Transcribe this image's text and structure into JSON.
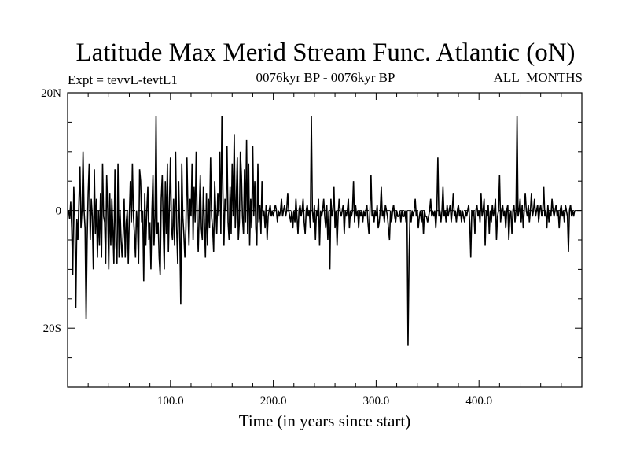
{
  "chart_data": {
    "type": "line",
    "title": "Latitude Max Merid Stream Func. Atlantic (oN)",
    "subtitle_left": "Expt = tevvL-tevtL1",
    "subtitle_center": "0076kyr BP - 0076kyr BP",
    "subtitle_right": "ALL_MONTHS",
    "xlabel": "Time (in years since start)",
    "ylabel": "",
    "xlim": [
      0,
      500
    ],
    "ylim": [
      -30,
      20
    ],
    "x_ticks": [
      100,
      200,
      300,
      400
    ],
    "x_tick_labels": [
      "100.0",
      "200.0",
      "300.0",
      "400.0"
    ],
    "y_ticks": [
      20,
      0,
      -20
    ],
    "y_tick_labels": [
      "20N",
      "0",
      "20S"
    ],
    "series": [
      {
        "name": "lat_max_stream",
        "x_start": 1,
        "x_step": 1,
        "values": [
          0,
          -1.5,
          1.5,
          -3,
          -11,
          4,
          -1,
          -16.5,
          -1.5,
          -5,
          1.5,
          7.5,
          -3,
          0,
          10,
          0,
          -3,
          -18.5,
          -5,
          3,
          8,
          -5,
          2,
          -1,
          -10,
          7,
          -4,
          2,
          -8,
          0,
          -6,
          3,
          -8,
          8,
          -1,
          -2,
          -9,
          6,
          0,
          -10,
          3,
          -6,
          2,
          -3,
          -9,
          7,
          -6,
          -9,
          8,
          -8,
          0,
          -5,
          -8,
          -4,
          2,
          -8,
          -2,
          0,
          -9,
          -1,
          5,
          -2,
          8,
          -1,
          -4,
          -8,
          0,
          -3,
          -9,
          7,
          5,
          -2,
          0,
          -12,
          3,
          -6,
          0,
          4,
          -5,
          -2,
          -10,
          0,
          6,
          -6,
          -1,
          16,
          -4,
          -2,
          -8,
          -11,
          2,
          6,
          -3,
          -10,
          5,
          -4,
          8,
          -7,
          1,
          9,
          -3,
          -5,
          2,
          -6,
          10,
          -3,
          -9,
          5,
          -3,
          -16,
          8,
          -1,
          -4,
          -8,
          -3,
          9,
          0,
          -6,
          2,
          -1,
          8,
          -5,
          4,
          -2,
          10,
          -2,
          -7,
          0,
          6,
          -3,
          -5,
          4,
          -2,
          -8,
          3,
          -6,
          2,
          -3,
          9,
          -1,
          -3,
          -7,
          5,
          0,
          -4,
          3,
          -1,
          10,
          -4,
          16,
          3,
          -6,
          2,
          0,
          11,
          -2,
          -5,
          4,
          -4,
          8,
          -1,
          13,
          -3,
          2,
          9,
          -5,
          -2,
          10,
          6,
          -1,
          -4,
          7,
          -2,
          12,
          -4,
          8,
          -6,
          2,
          -3,
          11,
          -1,
          5,
          -3,
          -6,
          8,
          -2,
          1,
          -4,
          5,
          -1,
          0,
          -3,
          1,
          -5,
          -1,
          0,
          1,
          -1,
          0,
          -1,
          0,
          1,
          0,
          -2,
          0,
          -1,
          0,
          2,
          -1,
          0,
          1,
          -1,
          0,
          3,
          0,
          -1,
          -2,
          0,
          -3,
          0,
          -2,
          2,
          -1,
          -4,
          0,
          1,
          -1,
          0,
          2,
          -2,
          -4,
          0,
          1,
          -1,
          0,
          -3,
          16,
          0,
          -2,
          1,
          -5,
          0,
          -1,
          2,
          -6,
          0,
          -1,
          0,
          2,
          -1,
          -3,
          1,
          -5,
          0,
          -10,
          2,
          -1,
          0,
          4,
          -3,
          0,
          -6,
          -1,
          2,
          0,
          -1,
          0,
          1,
          -4,
          0,
          -1,
          0,
          2,
          -3,
          0,
          -1,
          0,
          5,
          -2,
          1,
          -1,
          0,
          -3,
          0,
          -1,
          0,
          -2,
          0,
          -1,
          0,
          1,
          -2,
          -4,
          0,
          6,
          -1,
          0,
          -2,
          0,
          -1,
          1,
          -3,
          -2,
          0,
          4,
          -1,
          0,
          -2,
          1,
          0,
          -1,
          -3,
          -5,
          0,
          -2,
          0,
          1,
          -1,
          -2,
          0,
          -1,
          -1,
          0,
          -2,
          0,
          -1,
          -1,
          0,
          -2,
          0,
          -23,
          -8,
          0,
          -2,
          0,
          -1,
          0,
          2,
          -1,
          0,
          -3,
          -1,
          0,
          -2,
          0,
          -4,
          0,
          -1,
          -1,
          -2,
          -1,
          0,
          2,
          -1,
          0,
          -1,
          0,
          -3,
          0,
          9,
          -1,
          0,
          -2,
          0,
          4,
          -1,
          0,
          -2,
          1,
          -1,
          0,
          1,
          -2,
          0,
          3,
          -1,
          0,
          -2,
          0,
          1,
          -1,
          0,
          -2,
          0,
          -1,
          -2,
          0,
          -1,
          0,
          1,
          -2,
          -8,
          0,
          -1,
          0,
          -4,
          0,
          1,
          -1,
          0,
          -2,
          3,
          -1,
          0,
          2,
          -6,
          0,
          -1,
          1,
          -4,
          0,
          -2,
          1,
          -1,
          0,
          2,
          -5,
          -1,
          0,
          6,
          -2,
          0,
          1,
          -1,
          0,
          -3,
          0,
          1,
          -5,
          -1,
          0,
          -4,
          0,
          1,
          -2,
          0,
          16,
          -1,
          0,
          2,
          -2,
          1,
          -3,
          0,
          3,
          0,
          -1,
          1,
          -2,
          0,
          3,
          -1,
          0,
          2,
          -1,
          0,
          1,
          -2,
          0,
          1,
          -1,
          0,
          4,
          -1,
          0,
          -3,
          1,
          -2,
          0,
          -1,
          2,
          0,
          -1,
          0,
          1,
          -1,
          0,
          -3,
          0,
          1,
          -1,
          0,
          -2,
          1,
          0,
          -1,
          -7,
          0,
          1,
          -1,
          0,
          -1,
          0
        ]
      }
    ]
  }
}
